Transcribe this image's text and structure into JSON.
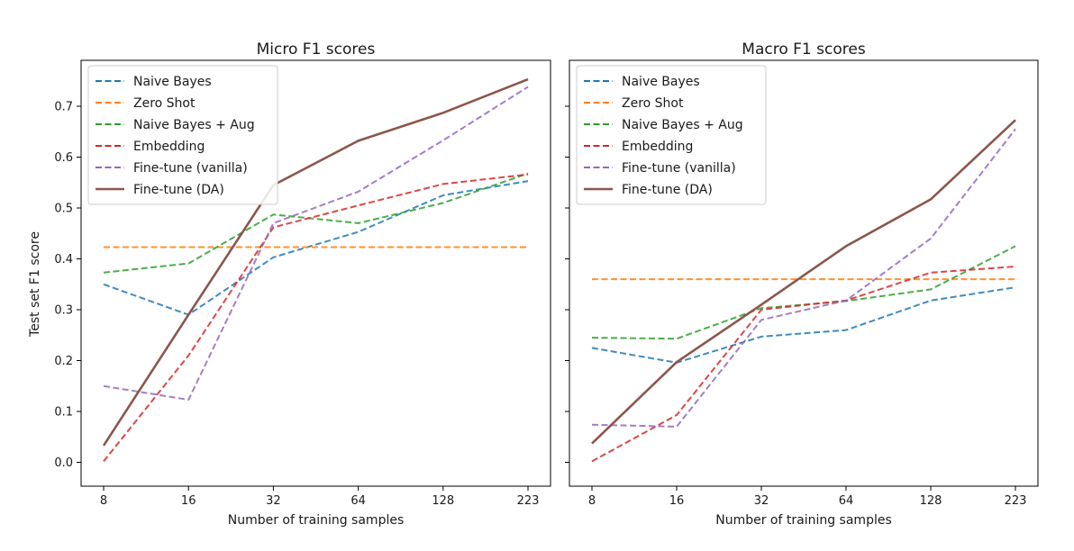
{
  "chart_data": [
    {
      "type": "line",
      "title": "Micro F1 scores",
      "xlabel": "Number of training samples",
      "ylabel": "Test set F1 score",
      "categories": [
        "8",
        "16",
        "32",
        "64",
        "128",
        "223"
      ],
      "yticks": [
        "0.0",
        "0.1",
        "0.2",
        "0.3",
        "0.4",
        "0.5",
        "0.6",
        "0.7"
      ],
      "ylim": [
        -0.03,
        0.78
      ],
      "grid": false,
      "legend_position": "top-left",
      "series": [
        {
          "name": "Naive Bayes",
          "color": "#1f77b4",
          "dashed": true,
          "values": [
            0.35,
            0.29,
            0.403,
            0.453,
            0.525,
            0.553
          ]
        },
        {
          "name": "Zero Shot",
          "color": "#ff7f0e",
          "dashed": true,
          "values": [
            0.423,
            0.423,
            0.423,
            0.423,
            0.423,
            0.423
          ]
        },
        {
          "name": "Naive Bayes + Aug",
          "color": "#2ca02c",
          "dashed": true,
          "values": [
            0.373,
            0.391,
            0.487,
            0.47,
            0.51,
            0.568
          ]
        },
        {
          "name": "Embedding",
          "color": "#d62728",
          "dashed": true,
          "values": [
            0.002,
            0.21,
            0.462,
            0.505,
            0.547,
            0.566
          ]
        },
        {
          "name": "Fine-tune (vanilla)",
          "color": "#9467bd",
          "dashed": true,
          "values": [
            0.15,
            0.123,
            0.47,
            0.532,
            0.633,
            0.738
          ]
        },
        {
          "name": "Fine-tune (DA)",
          "color": "#8c564b",
          "dashed": false,
          "values": [
            0.033,
            0.29,
            0.545,
            0.632,
            0.687,
            0.753
          ]
        }
      ]
    },
    {
      "type": "line",
      "title": "Macro F1 scores",
      "xlabel": "Number of training samples",
      "ylabel": "",
      "categories": [
        "8",
        "16",
        "32",
        "64",
        "128",
        "223"
      ],
      "ylim": [
        -0.03,
        0.78
      ],
      "grid": false,
      "legend_position": "top-left",
      "series": [
        {
          "name": "Naive Bayes",
          "color": "#1f77b4",
          "dashed": true,
          "values": [
            0.225,
            0.196,
            0.247,
            0.26,
            0.318,
            0.344
          ]
        },
        {
          "name": "Zero Shot",
          "color": "#ff7f0e",
          "dashed": true,
          "values": [
            0.36,
            0.36,
            0.36,
            0.36,
            0.36,
            0.36
          ]
        },
        {
          "name": "Naive Bayes + Aug",
          "color": "#2ca02c",
          "dashed": true,
          "values": [
            0.245,
            0.243,
            0.303,
            0.317,
            0.34,
            0.425
          ]
        },
        {
          "name": "Embedding",
          "color": "#d62728",
          "dashed": true,
          "values": [
            0.002,
            0.093,
            0.3,
            0.318,
            0.373,
            0.385
          ]
        },
        {
          "name": "Fine-tune (vanilla)",
          "color": "#9467bd",
          "dashed": true,
          "values": [
            0.074,
            0.07,
            0.28,
            0.318,
            0.44,
            0.655
          ]
        },
        {
          "name": "Fine-tune (DA)",
          "color": "#8c564b",
          "dashed": false,
          "values": [
            0.037,
            0.197,
            0.31,
            0.425,
            0.517,
            0.673
          ]
        }
      ]
    }
  ]
}
